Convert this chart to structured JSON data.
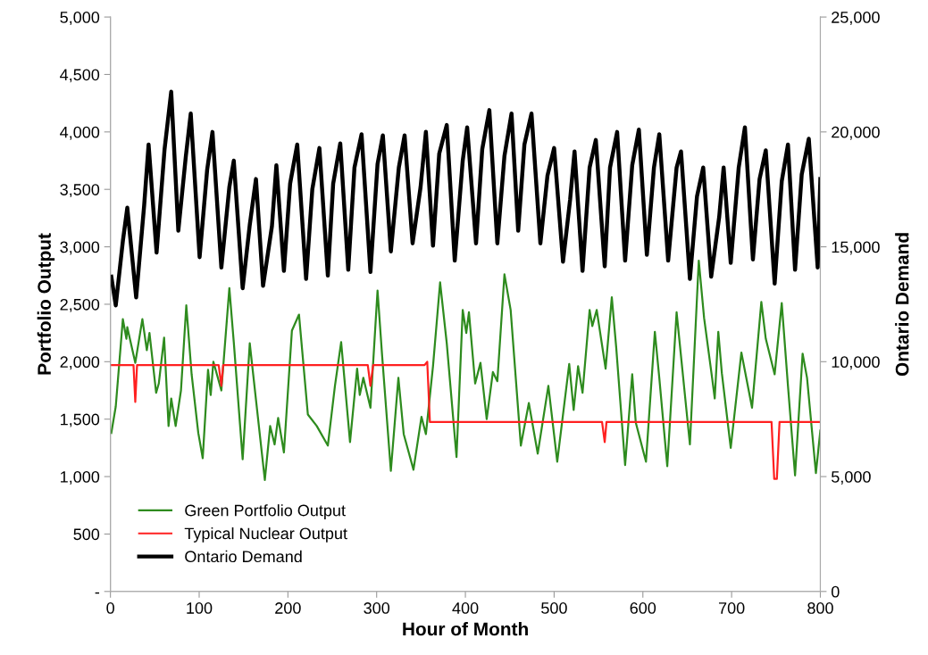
{
  "chart_data": {
    "type": "line",
    "xlabel": "Hour of Month",
    "ylabel": "Portfolio Output",
    "y2label": "Ontario Demand",
    "xlim": [
      0,
      800
    ],
    "xticks": [
      0,
      100,
      200,
      300,
      400,
      500,
      600,
      700,
      800
    ],
    "ylim": [
      0,
      5000
    ],
    "yticks": [
      {
        "value": 0,
        "label": "-"
      },
      {
        "value": 500,
        "label": "500"
      },
      {
        "value": 1000,
        "label": "1,000"
      },
      {
        "value": 1500,
        "label": "1,500"
      },
      {
        "value": 2000,
        "label": "2,000"
      },
      {
        "value": 2500,
        "label": "2,500"
      },
      {
        "value": 3000,
        "label": "3,000"
      },
      {
        "value": 3500,
        "label": "3,500"
      },
      {
        "value": 4000,
        "label": "4,000"
      },
      {
        "value": 4500,
        "label": "4,500"
      },
      {
        "value": 5000,
        "label": "5,000"
      }
    ],
    "y2lim": [
      0,
      25000
    ],
    "y2ticks": [
      {
        "value": 0,
        "label": "0"
      },
      {
        "value": 5000,
        "label": "5,000"
      },
      {
        "value": 10000,
        "label": "10,000"
      },
      {
        "value": 15000,
        "label": "15,000"
      },
      {
        "value": 20000,
        "label": "20,000"
      },
      {
        "value": 25000,
        "label": "25,000"
      }
    ],
    "grid": false,
    "legend": "bottom left",
    "marker": "none",
    "line_style": "solid",
    "series": [
      {
        "name": "Green Portfolio Output",
        "color": "#2e8b1e",
        "x": [
          1,
          6,
          14,
          18,
          19,
          28,
          36,
          41,
          44,
          51.5,
          54.5,
          60.5,
          65.5,
          68.5,
          73.5,
          79.5,
          85.5,
          91.5,
          99,
          104,
          110,
          113,
          116,
          125,
          134,
          139,
          149,
          157,
          164,
          174,
          180,
          185,
          189,
          195.5,
          204.5,
          212.5,
          222.5,
          232.5,
          245,
          253,
          260,
          270,
          278,
          281,
          285,
          293,
          301,
          306,
          316,
          324.5,
          330.5,
          341.5,
          350.5,
          355.5,
          363.5,
          371.5,
          379,
          390,
          397,
          401,
          404,
          411,
          417,
          424,
          431,
          436,
          444,
          451,
          462.5,
          471.5,
          481.5,
          493.5,
          503.5,
          517,
          522,
          527,
          532,
          540,
          543,
          548,
          558,
          565,
          570,
          580,
          588,
          592,
          603.5,
          613.5,
          618.5,
          627.5,
          638,
          653,
          663,
          669,
          678,
          681,
          685,
          689,
          699,
          711,
          723,
          733.5,
          738.5,
          748.5,
          756.5,
          763.5,
          771.5,
          780,
          785,
          795,
          800
        ],
        "values": [
          1380,
          1610,
          2370,
          2200,
          2300,
          1990,
          2370,
          2100,
          2250,
          1730,
          1810,
          2210,
          1440,
          1680,
          1440,
          1750,
          2490,
          1890,
          1380,
          1160,
          1930,
          1710,
          2000,
          1750,
          2640,
          2170,
          1150,
          2160,
          1670,
          970,
          1440,
          1280,
          1510,
          1210,
          2270,
          2410,
          1540,
          1440,
          1270,
          1790,
          2170,
          1300,
          1940,
          1710,
          1860,
          1600,
          2620,
          2070,
          1050,
          1860,
          1370,
          1060,
          1520,
          1370,
          1960,
          2690,
          2160,
          1170,
          2450,
          2250,
          2430,
          1810,
          1990,
          1500,
          1910,
          1830,
          2760,
          2450,
          1270,
          1640,
          1200,
          1790,
          1130,
          1980,
          1580,
          1960,
          1730,
          2450,
          2310,
          2450,
          1940,
          2560,
          2120,
          1100,
          1890,
          1470,
          1130,
          2260,
          1860,
          1090,
          2430,
          1280,
          2880,
          2380,
          1860,
          1680,
          2260,
          1900,
          1250,
          2080,
          1600,
          2520,
          2200,
          1890,
          2510,
          1790,
          1010,
          2070,
          1860,
          1030,
          1400
        ]
      },
      {
        "name": "Typical Nuclear Output",
        "color": "#ff2020",
        "x": [
          0,
          26,
          28,
          30,
          122,
          125,
          127,
          290,
          293,
          296,
          354,
          357,
          360,
          554,
          557,
          559,
          745,
          748,
          751,
          754,
          800
        ],
        "values": [
          1970,
          1970,
          1650,
          1970,
          1970,
          1790,
          1970,
          1970,
          1790,
          1970,
          1970,
          2000,
          1475,
          1475,
          1300,
          1475,
          1475,
          980,
          980,
          1475,
          1475
        ]
      },
      {
        "name": "Ontario Demand",
        "color": "#000000",
        "axis": "y2",
        "x": [
          1,
          6,
          14,
          19,
          29,
          38,
          43,
          52,
          61,
          68.5,
          76.5,
          85,
          90.5,
          100.5,
          109,
          115,
          125,
          134,
          139,
          149,
          157,
          164,
          172,
          182,
          187,
          195.5,
          202.5,
          210.5,
          220.5,
          227.5,
          235.5,
          245,
          251,
          259,
          268,
          275,
          283,
          293,
          301,
          307,
          316,
          325,
          331.5,
          340.5,
          349.5,
          355.5,
          363.5,
          370.5,
          379,
          388,
          397,
          402,
          412,
          419,
          427,
          436,
          444,
          452,
          459.5,
          466.5,
          474.5,
          484.5,
          492.5,
          500,
          510,
          518,
          523,
          532,
          540,
          547,
          557,
          563,
          571,
          580,
          588,
          595.5,
          604.5,
          612.5,
          618.5,
          628.5,
          638,
          643,
          653,
          661,
          668,
          677,
          686,
          691,
          699,
          708,
          715,
          724,
          731.5,
          738.5,
          748.5,
          756.5,
          763.5,
          771.5,
          779,
          787,
          797,
          800
        ],
        "values": [
          13700,
          12450,
          15250,
          16700,
          12800,
          16800,
          19450,
          14750,
          19250,
          21750,
          15700,
          18950,
          20800,
          14550,
          18350,
          20000,
          14100,
          17600,
          18750,
          13200,
          15950,
          17950,
          13300,
          15900,
          18550,
          13950,
          17750,
          19450,
          13600,
          17500,
          19300,
          13750,
          17750,
          19500,
          14000,
          18450,
          19900,
          13900,
          18600,
          19850,
          14800,
          18450,
          19850,
          15150,
          17600,
          20000,
          15050,
          19050,
          20300,
          14400,
          18750,
          20200,
          15150,
          19250,
          20950,
          15150,
          18950,
          20800,
          15700,
          19450,
          20800,
          15150,
          18100,
          19300,
          14350,
          17050,
          19150,
          13950,
          18450,
          19650,
          14150,
          18450,
          20000,
          14400,
          18550,
          20100,
          14650,
          18450,
          19900,
          14400,
          18450,
          19150,
          13600,
          17200,
          18450,
          13700,
          16300,
          18450,
          14300,
          18450,
          20200,
          14450,
          17950,
          19200,
          13400,
          17850,
          19450,
          14000,
          18150,
          19700,
          14100,
          17950
        ]
      }
    ]
  }
}
